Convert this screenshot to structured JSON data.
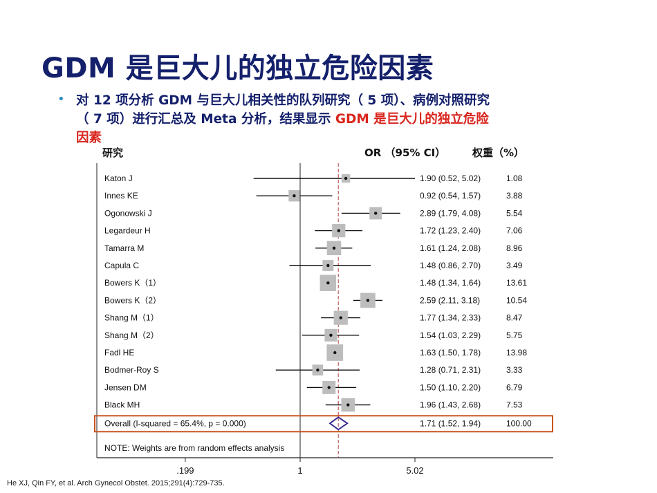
{
  "title": "GDM 是巨大儿的独立危险因素",
  "bullet": {
    "line1": "对 12 项分析 GDM 与巨大儿相关性的队列研究（ 5 项）、病例对照研究",
    "line2": "（ 7 项）进行汇总及 Meta 分析，结果显示 ",
    "highlight": "GDM 是巨大儿的独立危险",
    "line3": "因素"
  },
  "citation": "He XJ, Qin FY, et al. Arch Gynecol Obstet. 2015;291(4):729-735.",
  "colors": {
    "title": "#14206b",
    "highlight": "#d9251d",
    "bullet": "#2a8fbf",
    "overall_box": "#c8541e",
    "diamond": "#3b2a8f",
    "ref_line": "#b0413e"
  },
  "chart_data": {
    "type": "forest",
    "headers": {
      "study": "研究",
      "ci": "OR （95% CI）",
      "weight": "权重（%）"
    },
    "x_scale": "log",
    "xlim": [
      0.16,
      7.0
    ],
    "x_ticks": [
      ".199",
      "1",
      "5.02"
    ],
    "x_tick_values": [
      0.199,
      1,
      5.02
    ],
    "reference_line": 1,
    "overall_dashed_line": 1.71,
    "studies": [
      {
        "name": "Katon J",
        "or": 1.9,
        "lo": 0.52,
        "hi": 5.02,
        "ci": "1.90 (0.52, 5.02)",
        "weight": "1.08"
      },
      {
        "name": "Innes KE",
        "or": 0.92,
        "lo": 0.54,
        "hi": 1.57,
        "ci": "0.92 (0.54, 1.57)",
        "weight": "3.88"
      },
      {
        "name": "Ogonowski J",
        "or": 2.89,
        "lo": 1.79,
        "hi": 4.08,
        "ci": "2.89 (1.79, 4.08)",
        "weight": "5.54"
      },
      {
        "name": "Legardeur H",
        "or": 1.72,
        "lo": 1.23,
        "hi": 2.4,
        "ci": "1.72 (1.23, 2.40)",
        "weight": "7.06"
      },
      {
        "name": "Tamarra M",
        "or": 1.61,
        "lo": 1.24,
        "hi": 2.08,
        "ci": "1.61 (1.24, 2.08)",
        "weight": "8.96"
      },
      {
        "name": "Capula C",
        "or": 1.48,
        "lo": 0.86,
        "hi": 2.7,
        "ci": "1.48 (0.86, 2.70)",
        "weight": "3.49"
      },
      {
        "name": "Bowers K（1）",
        "or": 1.48,
        "lo": 1.34,
        "hi": 1.64,
        "ci": "1.48 (1.34, 1.64)",
        "weight": "13.61"
      },
      {
        "name": "Bowers K（2）",
        "or": 2.59,
        "lo": 2.11,
        "hi": 3.18,
        "ci": "2.59 (2.11, 3.18)",
        "weight": "10.54"
      },
      {
        "name": "Shang M（1）",
        "or": 1.77,
        "lo": 1.34,
        "hi": 2.33,
        "ci": "1.77 (1.34, 2.33)",
        "weight": "8.47"
      },
      {
        "name": "Shang M（2）",
        "or": 1.54,
        "lo": 1.03,
        "hi": 2.29,
        "ci": "1.54 (1.03, 2.29)",
        "weight": "5.75"
      },
      {
        "name": "Fadl HE",
        "or": 1.63,
        "lo": 1.5,
        "hi": 1.78,
        "ci": "1.63 (1.50, 1.78)",
        "weight": "13.98"
      },
      {
        "name": "Bodmer-Roy S",
        "or": 1.28,
        "lo": 0.71,
        "hi": 2.31,
        "ci": "1.28 (0.71, 2.31)",
        "weight": "3.33"
      },
      {
        "name": "Jensen DM",
        "or": 1.5,
        "lo": 1.1,
        "hi": 2.2,
        "ci": "1.50 (1.10, 2.20)",
        "weight": "6.79"
      },
      {
        "name": "Black MH",
        "or": 1.96,
        "lo": 1.43,
        "hi": 2.68,
        "ci": "1.96 (1.43, 2.68)",
        "weight": "7.53"
      }
    ],
    "overall": {
      "label": "Overall (I-squared = 65.4%, p = 0.000)",
      "or": 1.71,
      "lo": 1.52,
      "hi": 1.94,
      "ci": "1.71 (1.52, 1.94)",
      "weight": "100.00"
    },
    "note": "NOTE: Weights are from random effects analysis"
  }
}
